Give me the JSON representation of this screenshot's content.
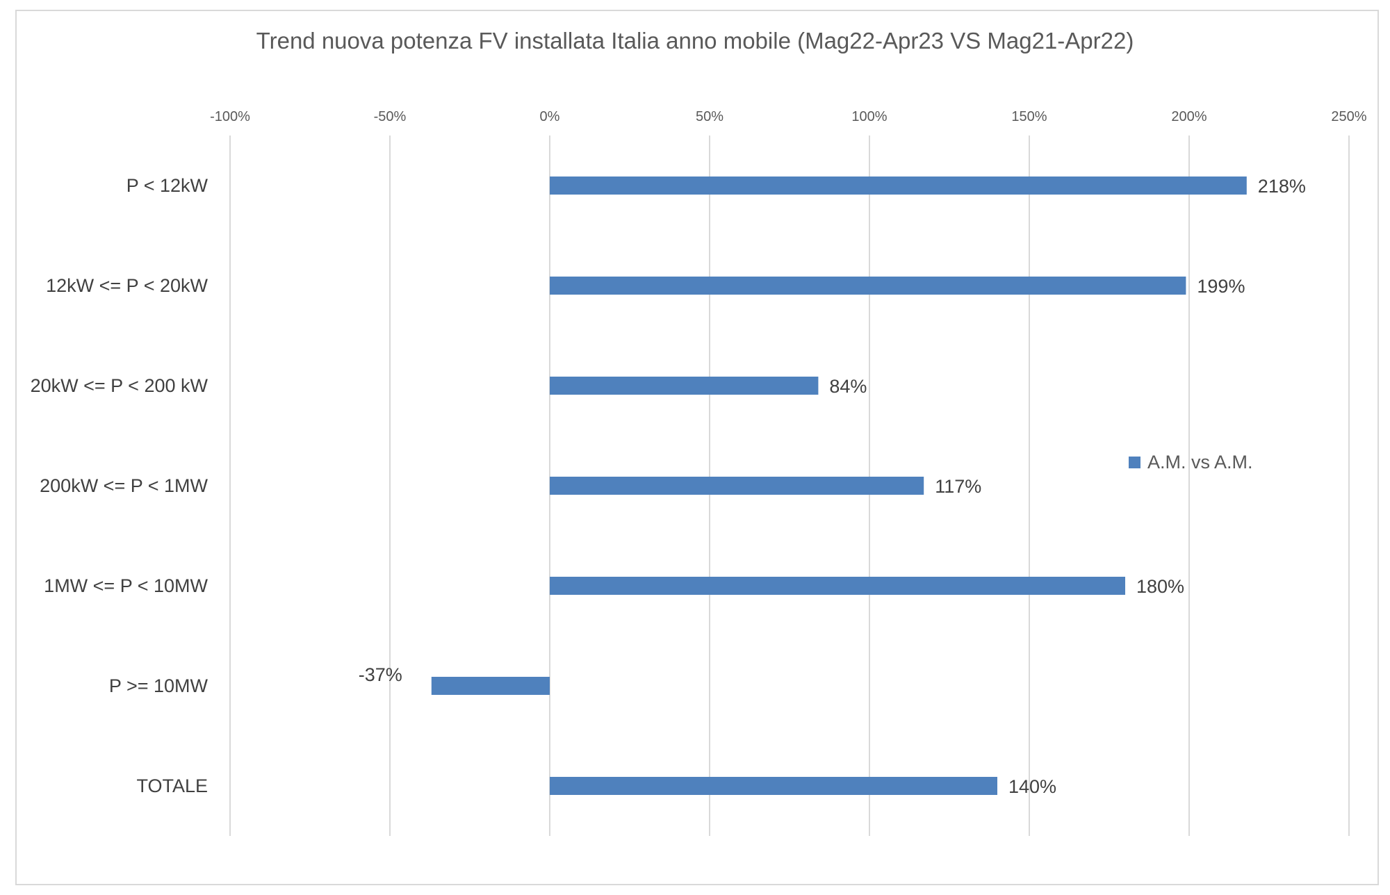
{
  "chart_data": {
    "type": "bar",
    "orientation": "horizontal",
    "title": "Trend nuova potenza FV installata Italia anno mobile (Mag22-Apr23 VS Mag21-Apr22)",
    "categories": [
      "P < 12kW",
      "12kW <= P < 20kW",
      "20kW <= P < 200 kW",
      "200kW <= P < 1MW",
      "1MW <= P < 10MW",
      "P >= 10MW",
      "TOTALE"
    ],
    "series": [
      {
        "name": "A.M. vs A.M.",
        "values": [
          2.18,
          1.99,
          0.84,
          1.17,
          1.8,
          -0.37,
          1.4
        ],
        "labels": [
          "218%",
          "199%",
          "84%",
          "117%",
          "180%",
          "-37%",
          "140%"
        ]
      }
    ],
    "xlim": [
      -1.0,
      2.5
    ],
    "xticks": [
      -1.0,
      -0.5,
      0,
      0.5,
      1.0,
      1.5,
      2.0,
      2.5
    ],
    "xtick_labels": [
      "-100%",
      "-50%",
      "0%",
      "50%",
      "100%",
      "150%",
      "200%",
      "250%"
    ],
    "x_axis_position": "top",
    "gridlines": true,
    "legend_position": "right",
    "bar_color": "#4f81bd",
    "grid_color": "#d9d9d9"
  }
}
